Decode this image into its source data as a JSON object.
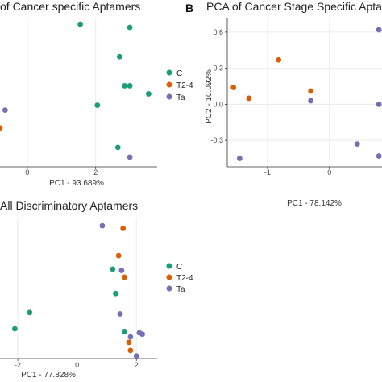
{
  "colors": {
    "C": "#1b9e77",
    "T2-4": "#d95f02",
    "Ta": "#7570b3"
  },
  "chart_data": [
    {
      "type": "scatter",
      "title": "of Cancer specific Aptamers",
      "xlabel": "PC1 - 93.689%",
      "ylabel": "",
      "xlim": [
        -0.8,
        3.8
      ],
      "ylim": [
        -2.3,
        2.3
      ],
      "xticks": [
        0,
        2
      ],
      "legend": [
        "C",
        "T2-4",
        "Ta"
      ],
      "legend_position": "right",
      "series": [
        {
          "name": "C",
          "points": [
            [
              1.55,
              2.1
            ],
            [
              3.0,
              2.0
            ],
            [
              2.7,
              1.1
            ],
            [
              2.85,
              0.2
            ],
            [
              3.0,
              0.2
            ],
            [
              3.55,
              -0.05
            ],
            [
              2.05,
              -0.4
            ],
            [
              2.65,
              -1.7
            ]
          ]
        },
        {
          "name": "T2-4",
          "points": [
            [
              -0.8,
              -1.1
            ]
          ]
        },
        {
          "name": "Ta",
          "points": [
            [
              -0.65,
              -0.55
            ],
            [
              3.0,
              -2.0
            ]
          ]
        }
      ]
    },
    {
      "type": "scatter",
      "panel_label": "B",
      "title": "PCA of Cancer Stage Specific Apta",
      "xlabel": "PC1 - 78.142%",
      "ylabel": "PC2 - 10.092%",
      "xlim": [
        -1.65,
        0.85
      ],
      "ylim": [
        -0.52,
        0.72
      ],
      "xticks": [
        -1,
        0
      ],
      "yticks": [
        0.6,
        0.3,
        0.0,
        -0.3
      ],
      "series": [
        {
          "name": "T2-4",
          "points": [
            [
              -1.55,
              0.14
            ],
            [
              -1.3,
              0.05
            ],
            [
              -0.82,
              0.37
            ],
            [
              -0.3,
              0.11
            ]
          ]
        },
        {
          "name": "Ta",
          "points": [
            [
              -0.3,
              0.03
            ],
            [
              0.8,
              0.62
            ],
            [
              0.8,
              0.0
            ],
            [
              0.45,
              -0.33
            ],
            [
              0.8,
              -0.43
            ],
            [
              -1.45,
              -0.45
            ]
          ]
        }
      ]
    },
    {
      "type": "scatter",
      "title": "All Discriminatory Aptamers",
      "xlabel": "PC1 - 77.828%",
      "ylabel": "",
      "xlim": [
        -2.6,
        2.7
      ],
      "ylim": [
        -2.6,
        2.6
      ],
      "xticks": [
        -2,
        0,
        2
      ],
      "legend": [
        "C",
        "T2-4",
        "Ta"
      ],
      "legend_position": "right",
      "series": [
        {
          "name": "C",
          "points": [
            [
              1.2,
              0.7
            ],
            [
              1.3,
              -0.2
            ],
            [
              -1.6,
              -0.9
            ],
            [
              -2.1,
              -1.5
            ],
            [
              1.6,
              -1.6
            ]
          ]
        },
        {
          "name": "T2-4",
          "points": [
            [
              1.55,
              2.2
            ],
            [
              1.4,
              1.2
            ],
            [
              1.6,
              0.4
            ],
            [
              1.75,
              -2.0
            ],
            [
              1.8,
              -2.3
            ]
          ]
        },
        {
          "name": "Ta",
          "points": [
            [
              0.85,
              2.3
            ],
            [
              1.5,
              0.65
            ],
            [
              1.45,
              -0.95
            ],
            [
              1.8,
              -1.8
            ],
            [
              2.1,
              -1.65
            ],
            [
              2.2,
              -1.7
            ],
            [
              2.0,
              -2.5
            ]
          ]
        }
      ]
    }
  ]
}
